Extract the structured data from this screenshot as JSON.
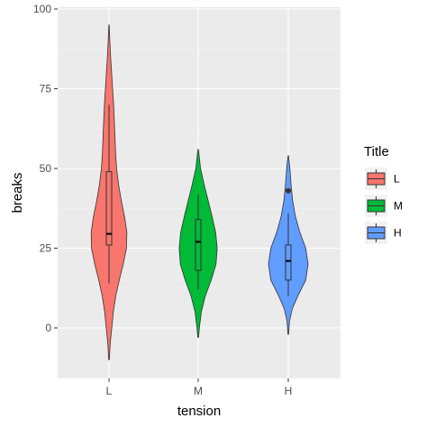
{
  "chart_data": {
    "type": "violin",
    "title": "",
    "xlabel": "tension",
    "ylabel": "breaks",
    "ylim": [
      -15,
      100
    ],
    "yticks": [
      0,
      25,
      50,
      75,
      100
    ],
    "categories": [
      "L",
      "M",
      "H"
    ],
    "grid": true,
    "legend": {
      "title": "Title",
      "position": "right",
      "entries": [
        "L",
        "M",
        "H"
      ]
    },
    "colors": {
      "L": "#F8766D",
      "M": "#00BA38",
      "H": "#619CFF",
      "panel": "#EBEBEB",
      "grid": "#FFFFFF"
    },
    "series": [
      {
        "category": "L",
        "color": "#F8766D",
        "violin_range": [
          -10,
          95
        ],
        "density_profile": [
          [
            -10,
            0.02
          ],
          [
            -5,
            0.06
          ],
          [
            0,
            0.14
          ],
          [
            5,
            0.22
          ],
          [
            10,
            0.34
          ],
          [
            15,
            0.52
          ],
          [
            20,
            0.72
          ],
          [
            25,
            0.88
          ],
          [
            30,
            0.9
          ],
          [
            35,
            0.78
          ],
          [
            40,
            0.62
          ],
          [
            45,
            0.48
          ],
          [
            50,
            0.38
          ],
          [
            55,
            0.33
          ],
          [
            60,
            0.3
          ],
          [
            65,
            0.27
          ],
          [
            70,
            0.23
          ],
          [
            75,
            0.18
          ],
          [
            80,
            0.13
          ],
          [
            85,
            0.08
          ],
          [
            90,
            0.04
          ],
          [
            95,
            0.01
          ]
        ],
        "box": {
          "whisker_low": 14,
          "q1": 26,
          "median": 29.5,
          "q3": 49,
          "whisker_high": 70
        },
        "outliers": []
      },
      {
        "category": "M",
        "color": "#00BA38",
        "violin_range": [
          -3,
          56
        ],
        "density_profile": [
          [
            -3,
            0.02
          ],
          [
            0,
            0.06
          ],
          [
            5,
            0.16
          ],
          [
            10,
            0.36
          ],
          [
            15,
            0.66
          ],
          [
            20,
            0.9
          ],
          [
            25,
            0.96
          ],
          [
            30,
            0.88
          ],
          [
            35,
            0.7
          ],
          [
            40,
            0.5
          ],
          [
            45,
            0.3
          ],
          [
            50,
            0.12
          ],
          [
            55,
            0.03
          ],
          [
            56,
            0.01
          ]
        ],
        "box": {
          "whisker_low": 12,
          "q1": 18,
          "median": 27,
          "q3": 34,
          "whisker_high": 42
        },
        "outliers": []
      },
      {
        "category": "H",
        "color": "#619CFF",
        "violin_range": [
          -2,
          54
        ],
        "density_profile": [
          [
            -2,
            0.02
          ],
          [
            2,
            0.06
          ],
          [
            6,
            0.2
          ],
          [
            10,
            0.48
          ],
          [
            15,
            0.88
          ],
          [
            20,
            1.0
          ],
          [
            25,
            0.88
          ],
          [
            30,
            0.58
          ],
          [
            35,
            0.36
          ],
          [
            40,
            0.22
          ],
          [
            45,
            0.14
          ],
          [
            50,
            0.08
          ],
          [
            54,
            0.01
          ]
        ],
        "box": {
          "whisker_low": 10,
          "q1": 15,
          "median": 21,
          "q3": 26,
          "whisker_high": 36
        },
        "outliers": [
          43
        ]
      }
    ]
  }
}
